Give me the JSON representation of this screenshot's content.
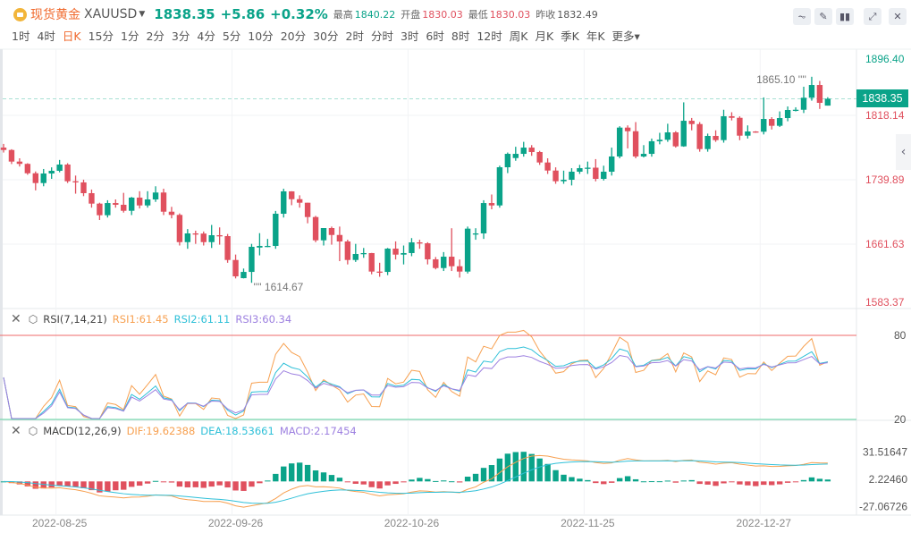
{
  "header": {
    "title": "现货黄金",
    "symbol": "XAUUSD",
    "price": "1838.35",
    "change": "+5.86",
    "change_pct": "+0.32%",
    "high_label": "最高",
    "high": "1840.22",
    "open_label": "开盘",
    "open": "1830.03",
    "low_label": "最低",
    "low": "1830.03",
    "prev_close_label": "昨收",
    "prev_close": "1832.49",
    "tools": [
      "indicator-icon",
      "draw-icon",
      "candle-type-icon",
      "fullscreen-icon",
      "close-icon"
    ]
  },
  "timeframes": [
    "1时",
    "4时",
    "日K",
    "15分",
    "1分",
    "2分",
    "3分",
    "4分",
    "5分",
    "10分",
    "20分",
    "30分",
    "2时",
    "分时",
    "3时",
    "6时",
    "8时",
    "12时",
    "周K",
    "月K",
    "季K",
    "年K",
    "更多"
  ],
  "active_timeframe": "日K",
  "colors": {
    "up": "#0aa389",
    "down": "#e0505e",
    "rsi1": "#f7a050",
    "rsi2": "#2fc0d8",
    "rsi3": "#9d80e0"
  },
  "rsi": {
    "name": "RSI(7,14,21)",
    "rsi1": "RSI1:61.45",
    "rsi2": "RSI2:61.11",
    "rsi3": "RSI3:60.34",
    "levels": [
      "80",
      "20"
    ]
  },
  "macd": {
    "name": "MACD(12,26,9)",
    "dif": "DIF:19.62388",
    "dea": "DEA:18.53661",
    "macd": "MACD:2.17454",
    "axis": [
      "31.51647",
      "2.22460",
      "-27.06726"
    ]
  },
  "price_axis": [
    "1896.40",
    "1818.14",
    "1739.89",
    "1661.63",
    "1583.37"
  ],
  "current_price": "1838.35",
  "max_label": "1865.10",
  "min_label": "1614.67",
  "chart_data": {
    "type": "candlestick",
    "fields": [
      "open",
      "high",
      "low",
      "close"
    ],
    "ylim": [
      1583.37,
      1896.4
    ],
    "x_ticks": [
      {
        "label": "2022-08-25",
        "index": 7
      },
      {
        "label": "2022-09-26",
        "index": 29
      },
      {
        "label": "2022-10-26",
        "index": 51
      },
      {
        "label": "2022-11-25",
        "index": 73
      },
      {
        "label": "2022-12-27",
        "index": 95
      }
    ],
    "candles": [
      [
        1779.0,
        1783.5,
        1773,
        1776.1
      ],
      [
        1776.1,
        1777,
        1759,
        1762.0
      ],
      [
        1762.0,
        1766,
        1756,
        1759.2
      ],
      [
        1759.2,
        1760,
        1746,
        1747.8
      ],
      [
        1747.8,
        1750,
        1727,
        1735.9
      ],
      [
        1735.9,
        1753,
        1732,
        1747.5
      ],
      [
        1747.5,
        1755,
        1741,
        1750.8
      ],
      [
        1750.8,
        1764,
        1749,
        1758.4
      ],
      [
        1758.4,
        1760,
        1736,
        1738.1
      ],
      [
        1738.1,
        1745,
        1723,
        1736.7
      ],
      [
        1736.7,
        1740,
        1720,
        1723.6
      ],
      [
        1723.6,
        1728,
        1706,
        1710.9
      ],
      [
        1710.9,
        1712,
        1691,
        1696.8
      ],
      [
        1696.8,
        1715,
        1694,
        1711.6
      ],
      [
        1711.6,
        1716,
        1706,
        1709.5
      ],
      [
        1709.5,
        1724,
        1700,
        1702.2
      ],
      [
        1702.2,
        1719,
        1697,
        1718.2
      ],
      [
        1718.2,
        1726,
        1705,
        1708.7
      ],
      [
        1708.7,
        1726,
        1706,
        1716.0
      ],
      [
        1716.0,
        1732,
        1713,
        1724.4
      ],
      [
        1724.4,
        1729,
        1697,
        1701.1
      ],
      [
        1701.1,
        1707,
        1693,
        1697.2
      ],
      [
        1697.2,
        1699,
        1660,
        1664.1
      ],
      [
        1664.1,
        1680,
        1656,
        1674.7
      ],
      [
        1674.7,
        1678,
        1662,
        1674.5
      ],
      [
        1674.5,
        1677,
        1660,
        1664.1
      ],
      [
        1664.1,
        1685,
        1657,
        1672.5
      ],
      [
        1672.5,
        1682,
        1661,
        1671.4
      ],
      [
        1671.4,
        1674,
        1639,
        1642.4
      ],
      [
        1642.4,
        1649,
        1620,
        1622.5
      ],
      [
        1620.3,
        1632,
        1620,
        1627.9
      ],
      [
        1627.9,
        1662,
        1614.67,
        1658.4
      ],
      [
        1657.5,
        1675,
        1648,
        1659.5
      ],
      [
        1658.5,
        1668,
        1658,
        1659.5
      ],
      [
        1659.5,
        1702,
        1656,
        1698.6
      ],
      [
        1698.6,
        1729,
        1694,
        1725.8
      ],
      [
        1725.8,
        1726,
        1709,
        1716.3
      ],
      [
        1716.3,
        1721,
        1706,
        1712.0
      ],
      [
        1712.0,
        1712,
        1687,
        1694.6
      ],
      [
        1694.6,
        1696,
        1664,
        1666.3
      ],
      [
        1666.3,
        1681,
        1660,
        1681.2
      ],
      [
        1681.2,
        1683,
        1661,
        1672.8
      ],
      [
        1672.8,
        1683,
        1641,
        1664.9
      ],
      [
        1664.9,
        1667,
        1637,
        1642.4
      ],
      [
        1642.4,
        1662,
        1640,
        1649.7
      ],
      [
        1649.7,
        1657,
        1645,
        1650.8
      ],
      [
        1650.8,
        1651,
        1625,
        1628.3
      ],
      [
        1628.3,
        1639,
        1622,
        1627.9
      ],
      [
        1627.9,
        1657,
        1624,
        1656.2
      ],
      [
        1656.2,
        1665,
        1643,
        1648.9
      ],
      [
        1648.9,
        1660,
        1637,
        1650.8
      ],
      [
        1650.8,
        1669,
        1647,
        1663.8
      ],
      [
        1663.8,
        1667,
        1656,
        1662.7
      ],
      [
        1662.7,
        1664,
        1637,
        1643.2
      ],
      [
        1643.2,
        1646,
        1631,
        1632.6
      ],
      [
        1632.6,
        1652,
        1629,
        1646.4
      ],
      [
        1646.4,
        1681,
        1629,
        1634.8
      ],
      [
        1634.8,
        1643,
        1621,
        1628.3
      ],
      [
        1628.3,
        1683,
        1626,
        1680.5
      ],
      [
        1674.5,
        1681,
        1667,
        1674.7
      ],
      [
        1674.7,
        1715,
        1668,
        1711.6
      ],
      [
        1711.6,
        1722,
        1704,
        1708.7
      ],
      [
        1708.7,
        1757,
        1706,
        1755.1
      ],
      [
        1755.1,
        1773,
        1748,
        1771.4
      ],
      [
        1766.3,
        1780,
        1763,
        1771.4
      ],
      [
        1771.4,
        1786,
        1768,
        1779.0
      ],
      [
        1779.0,
        1782,
        1769,
        1773.6
      ],
      [
        1773.6,
        1775,
        1758,
        1760.9
      ],
      [
        1760.9,
        1766,
        1747,
        1751.1
      ],
      [
        1751.1,
        1755,
        1735,
        1738.1
      ],
      [
        1738.1,
        1751,
        1735,
        1739.9
      ],
      [
        1739.9,
        1754,
        1733,
        1749.7
      ],
      [
        1749.7,
        1758,
        1747,
        1754.0
      ],
      [
        1754.0,
        1762,
        1747,
        1754.6
      ],
      [
        1754.6,
        1765,
        1738,
        1741.0
      ],
      [
        1741.0,
        1757,
        1739,
        1749.7
      ],
      [
        1749.7,
        1779,
        1745,
        1768.2
      ],
      [
        1768.2,
        1805,
        1766,
        1803.3
      ],
      [
        1803.3,
        1806,
        1778,
        1798.9
      ],
      [
        1798.9,
        1810,
        1766,
        1768.2
      ],
      [
        1768.2,
        1782,
        1767,
        1771.4
      ],
      [
        1771.4,
        1790,
        1768,
        1786.7
      ],
      [
        1786.7,
        1797,
        1783,
        1788.5
      ],
      [
        1788.5,
        1808,
        1786,
        1797.5
      ],
      [
        1797.5,
        1799,
        1779,
        1780.5
      ],
      [
        1780.5,
        1834,
        1780,
        1811.6
      ],
      [
        1811.6,
        1815,
        1800,
        1807.6
      ],
      [
        1807.6,
        1810,
        1774,
        1777.2
      ],
      [
        1777.2,
        1796,
        1774,
        1793.2
      ],
      [
        1793.2,
        1800,
        1786,
        1788.1
      ],
      [
        1788.1,
        1825,
        1785,
        1817.1
      ],
      [
        1817.1,
        1822,
        1812,
        1815.2
      ],
      [
        1815.2,
        1817,
        1788,
        1793.5
      ],
      [
        1793.5,
        1806,
        1790,
        1798.6
      ],
      [
        1798.6,
        1799,
        1797,
        1798.3
      ],
      [
        1798.3,
        1840,
        1795,
        1813.8
      ],
      [
        1813.8,
        1816,
        1801,
        1805.5
      ],
      [
        1805.5,
        1823,
        1804,
        1814.9
      ],
      [
        1814.9,
        1829,
        1811,
        1824.7
      ],
      [
        1824.7,
        1828,
        1823,
        1825.0
      ],
      [
        1825.0,
        1853,
        1821,
        1839.6
      ],
      [
        1839.6,
        1865.1,
        1836,
        1855.1
      ],
      [
        1855.1,
        1860,
        1826,
        1833.4
      ],
      [
        1830.03,
        1840.22,
        1830.03,
        1838.35
      ]
    ]
  }
}
